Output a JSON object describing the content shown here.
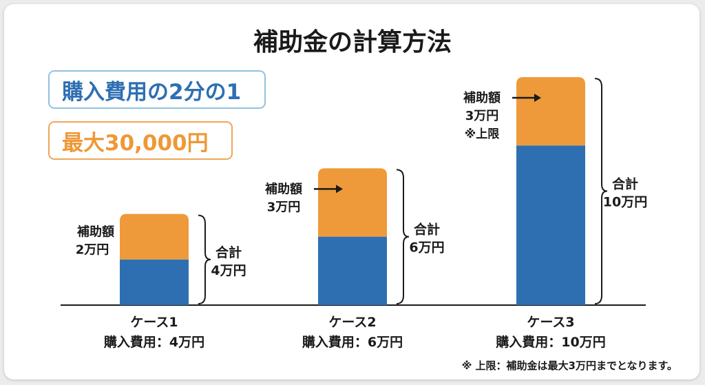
{
  "title": "補助金の計算方法",
  "rule_boxes": {
    "ratio": "購入費用の2分の1",
    "max": "最大30,000円"
  },
  "colors": {
    "cost_bar": "#2e6fb2",
    "subsidy_bar": "#ee9a3a",
    "axis": "#1a1a1a"
  },
  "chart_data": {
    "type": "bar",
    "stacked": true,
    "unit": "万円",
    "ylim": [
      0,
      10
    ],
    "categories": [
      "ケース1",
      "ケース2",
      "ケース3"
    ],
    "tick_sublabels": [
      "購入費用：4万円",
      "購入費用：6万円",
      "購入費用：10万円"
    ],
    "series": [
      {
        "values": [
          2,
          3,
          7
        ]
      },
      {
        "values": [
          2,
          3,
          3
        ]
      }
    ],
    "subsidy_labels": [
      [
        "補助額",
        "2万円"
      ],
      [
        "補助額",
        "3万円"
      ],
      [
        "補助額",
        "3万円",
        "※上限"
      ]
    ],
    "total_labels": [
      [
        "合計",
        "4万円"
      ],
      [
        "合計",
        "6万円"
      ],
      [
        "合計",
        "10万円"
      ]
    ]
  },
  "footnote": "※ 上限：補助金は最大3万円までとなります。"
}
